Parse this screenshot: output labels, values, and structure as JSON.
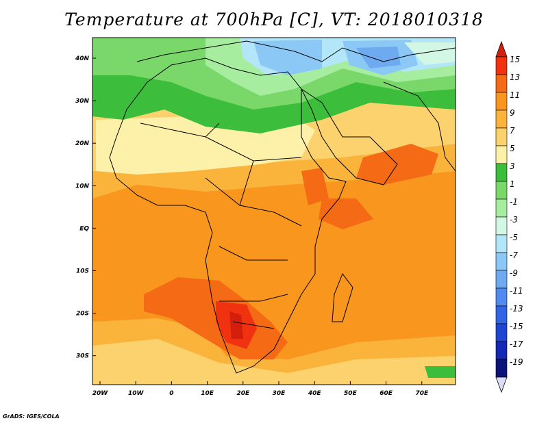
{
  "title": "Temperature at 700hPa [C], VT: 2018010318",
  "credit": "GrADS: IGES/COLA",
  "x_ticks": [
    "20W",
    "10W",
    "0",
    "10E",
    "20E",
    "30E",
    "40E",
    "50E",
    "60E",
    "70E"
  ],
  "y_ticks": [
    "40N",
    "30N",
    "20N",
    "10N",
    "EQ",
    "10S",
    "20S",
    "30S"
  ],
  "colorbar": {
    "labels": [
      "15",
      "13",
      "11",
      "9",
      "7",
      "5",
      "3",
      "1",
      "-1",
      "-3",
      "-5",
      "-7",
      "-9",
      "-11",
      "-13",
      "-15",
      "-17",
      "-19"
    ],
    "colors": [
      "#f03210",
      "#f56a14",
      "#f8961e",
      "#fab43c",
      "#fcd26e",
      "#fdf0a8",
      "#3cbe3c",
      "#7ad86a",
      "#a6eda0",
      "#d2f7e4",
      "#b4e6fa",
      "#8cc8f5",
      "#6eaaf0",
      "#508cf0",
      "#3264e6",
      "#1e46d2",
      "#1428b4",
      "#0a1478"
    ],
    "top_arrow_color": "#d21e0a",
    "bottom_arrow_color": "#dcdcf5"
  }
}
